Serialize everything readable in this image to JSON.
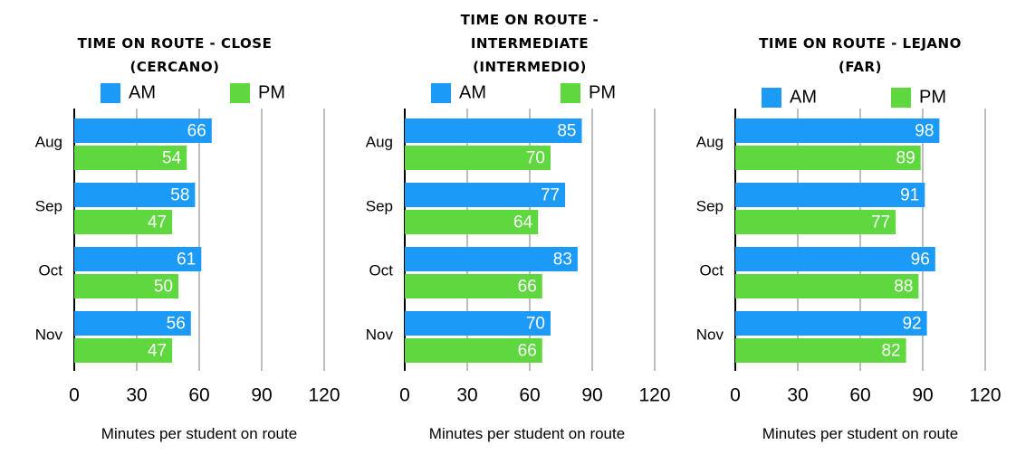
{
  "chart_data": [
    {
      "type": "bar",
      "orientation": "horizontal",
      "title": "Time on Route - Close (Cercano)",
      "categories": [
        "Aug",
        "Sep",
        "Oct",
        "Nov"
      ],
      "series": [
        {
          "name": "AM",
          "color": "#1b9bf7",
          "values": [
            66,
            58,
            61,
            56
          ]
        },
        {
          "name": "PM",
          "color": "#5fd83f",
          "values": [
            54,
            47,
            50,
            47
          ]
        }
      ],
      "xlim": [
        0,
        120
      ],
      "xticks": [
        0,
        30,
        60,
        90,
        120
      ],
      "x_label": "Minutes per student on route",
      "grid": true,
      "legend": "top"
    },
    {
      "type": "bar",
      "orientation": "horizontal",
      "title": "Time on Route - Intermediate (Intermedio)",
      "categories": [
        "Aug",
        "Sep",
        "Oct",
        "Nov"
      ],
      "series": [
        {
          "name": "AM",
          "color": "#1b9bf7",
          "values": [
            85,
            77,
            83,
            70
          ]
        },
        {
          "name": "PM",
          "color": "#5fd83f",
          "values": [
            70,
            64,
            66,
            66
          ]
        }
      ],
      "xlim": [
        0,
        120
      ],
      "xticks": [
        0,
        30,
        60,
        90,
        120
      ],
      "x_label": "Minutes per student on route",
      "grid": true,
      "legend": "top"
    },
    {
      "type": "bar",
      "orientation": "horizontal",
      "title": "Time on Route - Lejano (Far)",
      "categories": [
        "Aug",
        "Sep",
        "Oct",
        "Nov"
      ],
      "series": [
        {
          "name": "AM",
          "color": "#1b9bf7",
          "values": [
            98,
            91,
            96,
            92
          ]
        },
        {
          "name": "PM",
          "color": "#5fd83f",
          "values": [
            89,
            77,
            88,
            82
          ]
        }
      ],
      "xlim": [
        0,
        120
      ],
      "xticks": [
        0,
        30,
        60,
        90,
        120
      ],
      "x_label": "Minutes per student on route",
      "grid": true,
      "legend": "top"
    }
  ]
}
